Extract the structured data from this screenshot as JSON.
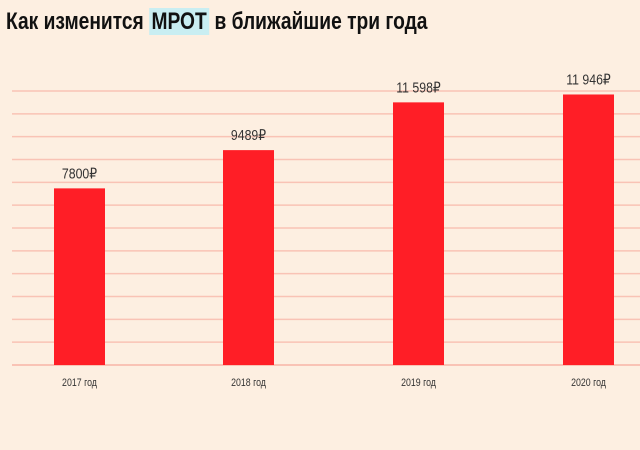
{
  "title": {
    "before": "Как изменится ",
    "highlight": "МРОТ",
    "after": " в ближайшие три года"
  },
  "chart_data": {
    "type": "bar",
    "categories": [
      "2017 год",
      "2018 год",
      "2019 год",
      "2020 год"
    ],
    "values": [
      7800,
      9489,
      11598,
      11946
    ],
    "value_labels": [
      "7800₽",
      "9489₽",
      "11 598₽",
      "11 946₽"
    ],
    "title": "Как изменится МРОТ в ближайшие три года",
    "xlabel": "",
    "ylabel": "",
    "ylim": [
      0,
      12100
    ],
    "grid": true,
    "bar_color": "#ff1e26",
    "grid_color": "#f9c3b5",
    "highlight_color": "#c9eef2"
  }
}
